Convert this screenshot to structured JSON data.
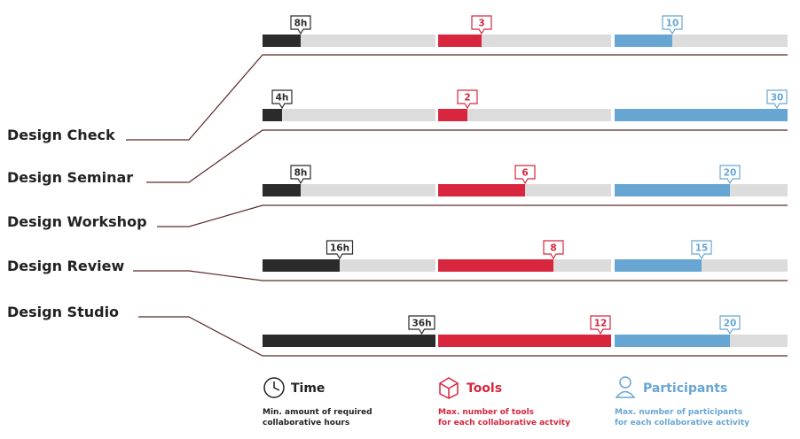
{
  "chart_data": {
    "type": "bar",
    "categories": [
      "Design Check",
      "Design Seminar",
      "Design Workshop",
      "Design Review",
      "Design Studio"
    ],
    "series": [
      {
        "key": "time",
        "name": "Time",
        "description": [
          "Min. amount of required",
          "collaborative hours"
        ],
        "unit": "h",
        "color": "#2b2b2b",
        "max": 36,
        "values": [
          8,
          4,
          8,
          16,
          36
        ]
      },
      {
        "key": "tools",
        "name": "Tools",
        "description": [
          "Max. number of tools",
          "for each collaborative actvity"
        ],
        "unit": "",
        "color": "#d7263d",
        "max": 12,
        "values": [
          3,
          2,
          6,
          8,
          12
        ]
      },
      {
        "key": "participants",
        "name": "Participants",
        "description": [
          "Max. number of participants",
          "for each collaborative activity"
        ],
        "unit": "",
        "color": "#67a6d3",
        "max": 30,
        "values": [
          10,
          30,
          20,
          15,
          20
        ]
      }
    ],
    "track_color": "#dcdcdc",
    "line_color": "#5a2a2a"
  }
}
